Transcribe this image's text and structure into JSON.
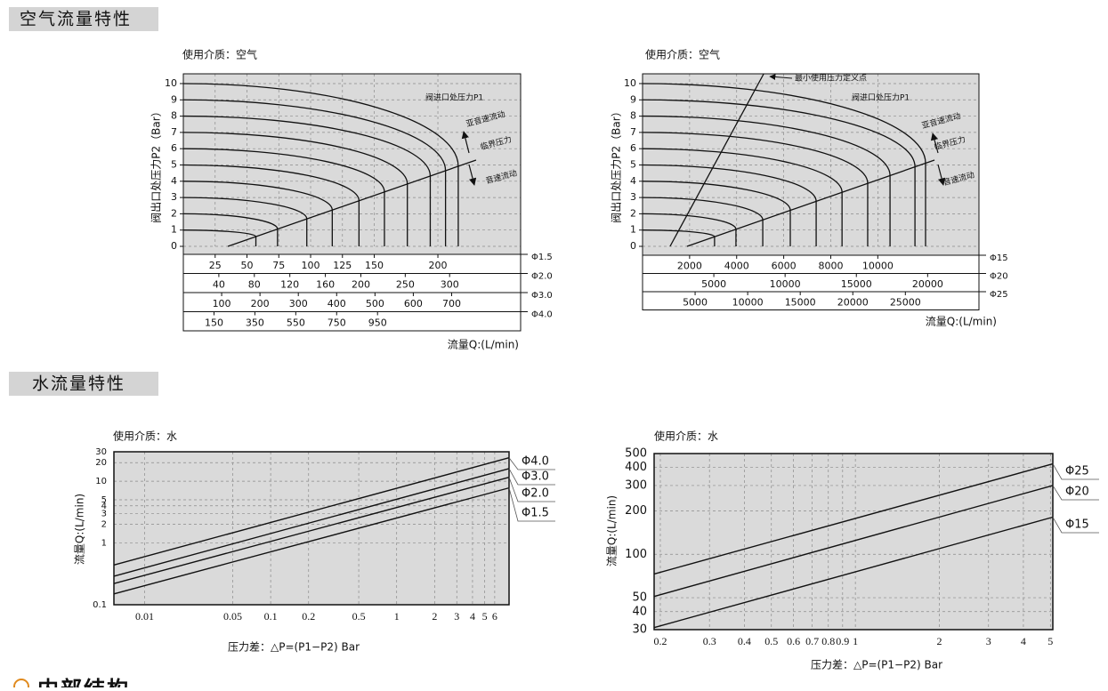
{
  "sections": [
    {
      "title": "空气流量特性"
    },
    {
      "title": "水流量特性"
    },
    {
      "title": "内部结构"
    }
  ],
  "chart_data": [
    {
      "type": "pressure-flow",
      "medium": "使用介质：空气",
      "ylabel": "阀出口处压力P2（Bar）",
      "xlabel": "流量Q:(L/min)",
      "ylim": [
        0,
        10.6
      ],
      "yticks": [
        0,
        1,
        2,
        3,
        4,
        5,
        6,
        7,
        8,
        9,
        10
      ],
      "grid": true,
      "annotations": [
        "阀进口处压力P1",
        "亚音速流动",
        "临界压力",
        "音速流动"
      ],
      "curves": {
        "inlet_pressure": [
          1,
          2,
          3,
          4,
          5,
          6,
          7,
          8,
          9,
          10
        ],
        "max_flow": [
          57,
          74,
          97,
          117,
          138,
          158,
          176,
          194,
          206,
          216
        ]
      },
      "critical_line": {
        "x": [
          35,
          230
        ],
        "y": [
          0,
          5.3
        ]
      },
      "scales": [
        {
          "label": "Φ1.5",
          "xlim": [
            0,
            265
          ],
          "xticks": [
            25,
            50,
            75,
            100,
            125,
            150,
            200
          ]
        },
        {
          "label": "Φ2.0",
          "xlim": [
            0,
            380
          ],
          "xticks": [
            40,
            80,
            120,
            160,
            200,
            250,
            300
          ]
        },
        {
          "label": "Φ3.0",
          "xlim": [
            0,
            880
          ],
          "xticks": [
            100,
            200,
            300,
            400,
            500,
            600,
            700
          ]
        },
        {
          "label": "Φ4.0",
          "xlim": [
            0,
            1650
          ],
          "xticks": [
            150,
            350,
            550,
            750,
            950
          ]
        }
      ]
    },
    {
      "type": "pressure-flow",
      "medium": "使用介质：空气",
      "ylabel": "阀出口处压力P2（Bar）",
      "xlabel": "流量Q:(L/min)",
      "ylim": [
        0,
        10.6
      ],
      "yticks": [
        0,
        1,
        2,
        3,
        4,
        5,
        6,
        7,
        8,
        9,
        10
      ],
      "grid": true,
      "annotations": [
        "最小使用压力定义点",
        "阀进口处压力P1",
        "亚音速流动",
        "临界压力",
        "音速流动"
      ],
      "curves": {
        "inlet_pressure": [
          1,
          2,
          3,
          4,
          5,
          6,
          7,
          8,
          9,
          10
        ],
        "max_flow": [
          3060,
          3970,
          5110,
          6280,
          7380,
          8480,
          9570,
          10520,
          11580,
          12030
        ]
      },
      "critical_line": {
        "x": [
          1890,
          12410
        ],
        "y": [
          0,
          5.3
        ]
      },
      "min_pressure_line": {
        "x": [
          1170,
          5150
        ],
        "y": [
          0,
          10.6
        ]
      },
      "scales": [
        {
          "label": "Φ15",
          "xlim": [
            0,
            14300
          ],
          "xticks": [
            2000,
            4000,
            6000,
            8000,
            10000
          ]
        },
        {
          "label": "Φ20",
          "xlim": [
            0,
            23600
          ],
          "xticks": [
            5000,
            10000,
            15000,
            20000
          ]
        },
        {
          "label": "Φ25",
          "xlim": [
            0,
            32000
          ],
          "xticks": [
            5000,
            10000,
            15000,
            20000,
            25000
          ]
        }
      ]
    },
    {
      "type": "log-line",
      "medium": "使用介质：水",
      "ylabel": "流量Q:(L/min)",
      "xlabel": "压力差：△P=(P1−P2) Bar",
      "xscale": "log",
      "yscale": "log",
      "grid": true,
      "xlim": [
        0.0057,
        7.8
      ],
      "ylim": [
        0.1,
        30
      ],
      "xticks": [
        0.01,
        0.05,
        0.1,
        0.2,
        0.5,
        1,
        2,
        3,
        4,
        5,
        6
      ],
      "yticks": [
        0.1,
        1,
        2,
        3,
        4,
        5,
        10,
        20,
        30
      ],
      "x": [
        0.0057,
        7.8
      ],
      "series": [
        {
          "name": "Φ4.0",
          "color": "#111111",
          "values": [
            0.44,
            24
          ]
        },
        {
          "name": "Φ3.0",
          "color": "#111111",
          "values": [
            0.29,
            16
          ]
        },
        {
          "name": "Φ2.0",
          "color": "#111111",
          "values": [
            0.22,
            11.6
          ]
        },
        {
          "name": "Φ1.5",
          "color": "#111111",
          "values": [
            0.15,
            7.8
          ]
        }
      ]
    },
    {
      "type": "log-line",
      "medium": "使用介质：水",
      "ylabel": "流量Q:(L/min)",
      "xlabel": "压力差：△P=(P1−P2) Bar",
      "xscale": "log",
      "yscale": "log",
      "grid": true,
      "xlim": [
        0.19,
        5.1
      ],
      "ylim": [
        30,
        500
      ],
      "xticks": [
        0.2,
        0.3,
        0.4,
        0.5,
        0.6,
        0.7,
        0.8,
        0.9,
        1,
        2,
        3,
        4,
        5
      ],
      "yticks": [
        30,
        40,
        50,
        100,
        200,
        300,
        400,
        500
      ],
      "x": [
        0.19,
        5.1
      ],
      "series": [
        {
          "name": "Φ25",
          "color": "#111111",
          "values": [
            73,
            424
          ]
        },
        {
          "name": "Φ20",
          "color": "#111111",
          "values": [
            51,
            300
          ]
        },
        {
          "name": "Φ15",
          "color": "#111111",
          "values": [
            31,
            181
          ]
        }
      ]
    }
  ]
}
